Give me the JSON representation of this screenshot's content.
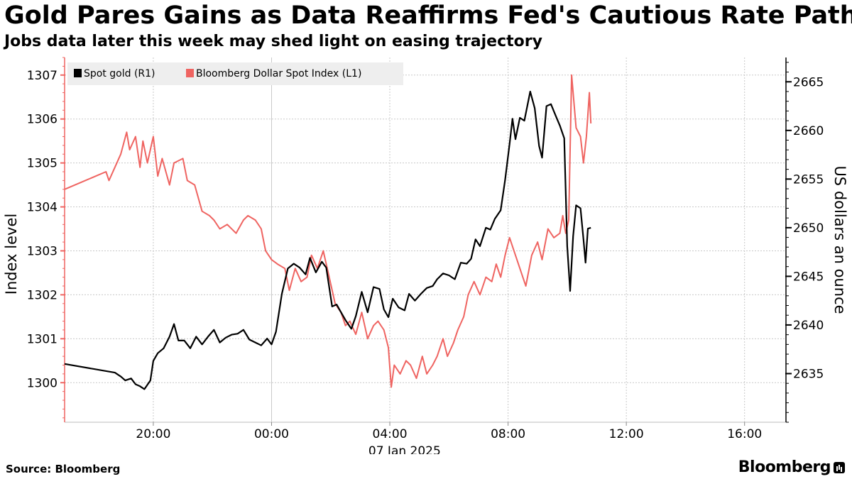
{
  "header": {
    "title": "Gold Pares Gains as Data Reaffirms Fed's Cautious Rate Path",
    "subtitle": "Jobs data later this week may shed light on easing trajectory"
  },
  "footer": {
    "source": "Source: Bloomberg",
    "brand": "Bloomberg"
  },
  "colors": {
    "gold": "#000000",
    "dxy": "#ef6461",
    "grid": "#c8c8c8",
    "legend_bg": "#eeeeee"
  },
  "chart_data": {
    "type": "line",
    "title": "Gold Pares Gains as Data Reaffirms Fed's Cautious Rate Path",
    "xlabel": "07 Jan 2025",
    "x_unit": "hours relative to 00:00 on 07 Jan 2025",
    "x_range": [
      -7,
      17.4
    ],
    "x_ticks": [
      {
        "value": -4,
        "label": "20:00"
      },
      {
        "value": 0,
        "label": "00:00"
      },
      {
        "value": 4,
        "label": "04:00"
      },
      {
        "value": 8,
        "label": "08:00"
      },
      {
        "value": 12,
        "label": "12:00"
      },
      {
        "value": 16,
        "label": "16:00"
      }
    ],
    "y_left": {
      "label": "Index level",
      "range": [
        1299.1,
        1307.4
      ],
      "ticks": [
        "1300",
        "1301",
        "1302",
        "1303",
        "1304",
        "1305",
        "1306",
        "1307"
      ]
    },
    "y_right": {
      "label": "US dollars an ounce",
      "range": [
        2630.0,
        2667.5
      ],
      "ticks": [
        "2635",
        "2640",
        "2645",
        "2650",
        "2655",
        "2660",
        "2665"
      ]
    },
    "grid": true,
    "legend_position": "top-left",
    "series": [
      {
        "name": "Bloomberg Dollar Spot Index (L1)",
        "axis": "left",
        "x": [
          -7,
          -5.6,
          -5.5,
          -5.3,
          -5.1,
          -4.9,
          -4.8,
          -4.6,
          -4.45,
          -4.35,
          -4.2,
          -4.0,
          -3.85,
          -3.7,
          -3.45,
          -3.3,
          -3.0,
          -2.85,
          -2.6,
          -2.35,
          -2.1,
          -1.95,
          -1.75,
          -1.5,
          -1.2,
          -0.95,
          -0.8,
          -0.55,
          -0.35,
          -0.2,
          0,
          0.2,
          0.45,
          0.6,
          0.8,
          1.0,
          1.2,
          1.35,
          1.55,
          1.75,
          1.95,
          2.15,
          2.35,
          2.5,
          2.65,
          2.85,
          3.05,
          3.25,
          3.45,
          3.6,
          3.8,
          3.95,
          4.05,
          4.15,
          4.35,
          4.55,
          4.7,
          4.9,
          5.1,
          5.25,
          5.45,
          5.6,
          5.8,
          5.95,
          6.15,
          6.3,
          6.5,
          6.65,
          6.85,
          7.05,
          7.25,
          7.45,
          7.6,
          7.75,
          7.9,
          8.05,
          8.25,
          8.45,
          8.6,
          8.8,
          9.0,
          9.15,
          9.35,
          9.55,
          9.75,
          9.85,
          9.95,
          10.05,
          10.15,
          10.3,
          10.45,
          10.55,
          10.65,
          10.75,
          10.8
        ],
        "values": [
          1304.4,
          1304.8,
          1304.6,
          1304.9,
          1305.2,
          1305.7,
          1305.3,
          1305.6,
          1304.9,
          1305.5,
          1305.0,
          1305.6,
          1304.7,
          1305.1,
          1304.5,
          1305.0,
          1305.1,
          1304.6,
          1304.5,
          1303.9,
          1303.8,
          1303.7,
          1303.5,
          1303.6,
          1303.4,
          1303.7,
          1303.8,
          1303.7,
          1303.5,
          1303.0,
          1302.8,
          1302.7,
          1302.6,
          1302.1,
          1302.6,
          1302.3,
          1302.4,
          1302.9,
          1302.6,
          1303.0,
          1302.4,
          1301.8,
          1301.6,
          1301.3,
          1301.4,
          1301.1,
          1301.6,
          1301.0,
          1301.3,
          1301.4,
          1301.2,
          1300.8,
          1299.9,
          1300.4,
          1300.2,
          1300.5,
          1300.4,
          1300.1,
          1300.6,
          1300.2,
          1300.4,
          1300.6,
          1301.0,
          1300.6,
          1300.9,
          1301.2,
          1301.5,
          1302.0,
          1302.3,
          1302.0,
          1302.4,
          1302.3,
          1302.7,
          1302.4,
          1302.9,
          1303.3,
          1302.9,
          1302.5,
          1302.2,
          1302.9,
          1303.2,
          1302.8,
          1303.5,
          1303.3,
          1303.4,
          1303.8,
          1303.4,
          1303.7,
          1307.0,
          1305.8,
          1305.6,
          1305.0,
          1305.6,
          1306.6,
          1305.9
        ]
      },
      {
        "name": "Spot gold (R1)",
        "axis": "right",
        "x": [
          -7,
          -5.3,
          -5.1,
          -4.95,
          -4.75,
          -4.6,
          -4.45,
          -4.3,
          -4.1,
          -4.0,
          -3.85,
          -3.65,
          -3.45,
          -3.3,
          -3.15,
          -2.95,
          -2.75,
          -2.55,
          -2.35,
          -2.15,
          -1.95,
          -1.75,
          -1.55,
          -1.35,
          -1.15,
          -0.95,
          -0.75,
          -0.55,
          -0.35,
          -0.15,
          0,
          0.15,
          0.35,
          0.55,
          0.75,
          0.95,
          1.15,
          1.3,
          1.5,
          1.7,
          1.85,
          2.05,
          2.2,
          2.35,
          2.5,
          2.7,
          2.85,
          3.05,
          3.25,
          3.45,
          3.65,
          3.8,
          3.95,
          4.1,
          4.3,
          4.5,
          4.65,
          4.85,
          5.05,
          5.25,
          5.45,
          5.6,
          5.8,
          6.0,
          6.2,
          6.4,
          6.6,
          6.75,
          6.9,
          7.05,
          7.25,
          7.4,
          7.55,
          7.75,
          7.9,
          8.05,
          8.15,
          8.25,
          8.4,
          8.55,
          8.75,
          8.9,
          9.05,
          9.15,
          9.3,
          9.45,
          9.6,
          9.75,
          9.9,
          10.0,
          10.1,
          10.2,
          10.3,
          10.45,
          10.55,
          10.62,
          10.7,
          10.8
        ],
        "values": [
          2636.0,
          2635.1,
          2634.7,
          2634.3,
          2634.5,
          2633.9,
          2633.7,
          2633.4,
          2634.3,
          2636.3,
          2637.1,
          2637.6,
          2638.8,
          2640.1,
          2638.4,
          2638.4,
          2637.6,
          2638.8,
          2638.0,
          2638.8,
          2639.5,
          2638.2,
          2638.7,
          2639.0,
          2639.1,
          2639.5,
          2638.5,
          2638.2,
          2637.9,
          2638.6,
          2638.0,
          2639.3,
          2643.2,
          2645.8,
          2646.3,
          2645.9,
          2645.2,
          2646.9,
          2645.4,
          2646.5,
          2645.9,
          2641.9,
          2642.1,
          2641.3,
          2640.5,
          2639.6,
          2640.9,
          2643.4,
          2641.3,
          2643.9,
          2643.7,
          2641.6,
          2640.8,
          2642.7,
          2641.8,
          2641.5,
          2643.2,
          2642.5,
          2643.2,
          2643.8,
          2644.0,
          2644.7,
          2645.3,
          2645.1,
          2644.7,
          2646.4,
          2646.3,
          2646.8,
          2648.8,
          2648.1,
          2650.0,
          2649.8,
          2650.9,
          2651.8,
          2654.9,
          2658.6,
          2661.2,
          2659.1,
          2661.3,
          2661.0,
          2664.0,
          2662.3,
          2658.4,
          2657.2,
          2662.5,
          2662.7,
          2661.6,
          2660.5,
          2659.2,
          2648.1,
          2643.5,
          2649.1,
          2652.3,
          2652.0,
          2648.8,
          2646.4,
          2649.9,
          2650.0
        ]
      }
    ]
  }
}
